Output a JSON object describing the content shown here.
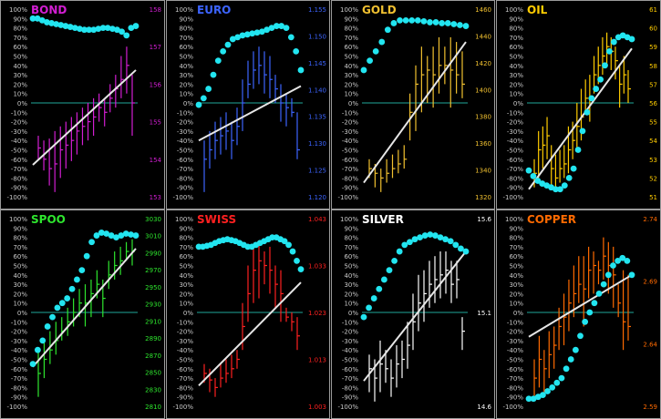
{
  "colors": {
    "background": "#000000",
    "zero_line": "#1fa99a",
    "dots": "#22e5f0",
    "trend": "#e6e6e6",
    "pct_axis": "#c8c8c8",
    "panel_border": "#9a9a9a"
  },
  "chart_data": [
    {
      "type": "bar",
      "title": "BOND",
      "color": "#d21ed2",
      "price_ticks": [
        "158",
        "157",
        "156",
        "155",
        "154",
        "153"
      ],
      "pct_ticks": [
        "100%",
        "90%",
        "80%",
        "70%",
        "60%",
        "50%",
        "40%",
        "30%",
        "20%",
        "10%",
        "0%",
        "-10%",
        "-20%",
        "-30%",
        "-40%",
        "-50%",
        "-60%",
        "-70%",
        "-80%",
        "-90%",
        "-100%"
      ],
      "oscillator": [
        90,
        90,
        88,
        86,
        85,
        84,
        83,
        82,
        81,
        80,
        79,
        78,
        78,
        78,
        79,
        80,
        80,
        79,
        78,
        76,
        72,
        80,
        82
      ],
      "trend": [
        -66,
        35
      ],
      "bars": [
        [
          -60,
          -35,
          -48
        ],
        [
          -72,
          -40,
          -60
        ],
        [
          -88,
          -38,
          -70
        ],
        [
          -95,
          -30,
          -65
        ],
        [
          -80,
          -25,
          -50
        ],
        [
          -70,
          -20,
          -45
        ],
        [
          -62,
          -15,
          -40
        ],
        [
          -55,
          -10,
          -30
        ],
        [
          -45,
          -5,
          -25
        ],
        [
          -40,
          0,
          -20
        ],
        [
          -35,
          5,
          -15
        ],
        [
          -20,
          10,
          -5
        ],
        [
          -25,
          5,
          -10
        ],
        [
          -10,
          20,
          5
        ],
        [
          -5,
          30,
          15
        ],
        [
          5,
          50,
          25
        ],
        [
          10,
          60,
          40
        ],
        [
          -35,
          30,
          0
        ]
      ]
    },
    {
      "type": "bar",
      "title": "EURO",
      "color": "#3c64ff",
      "price_ticks": [
        "1.155",
        "1.150",
        "1.145",
        "1.140",
        "1.135",
        "1.130",
        "1.125",
        "1.120"
      ],
      "pct_ticks": [
        "100%",
        "90%",
        "80%",
        "70%",
        "60%",
        "50%",
        "40%",
        "30%",
        "20%",
        "10%",
        "0%",
        "-10%",
        "-20%",
        "-30%",
        "-40%",
        "-50%",
        "-60%",
        "-70%",
        "-80%",
        "-90%",
        "-100%"
      ],
      "oscillator": [
        -2,
        5,
        15,
        30,
        45,
        55,
        62,
        68,
        70,
        72,
        73,
        74,
        75,
        76,
        78,
        80,
        82,
        82,
        80,
        70,
        55,
        35
      ],
      "trend": [
        -40,
        18
      ],
      "bars": [
        [
          -95,
          -40,
          -60
        ],
        [
          -70,
          -30,
          -50
        ],
        [
          -60,
          -20,
          -40
        ],
        [
          -55,
          -15,
          -35
        ],
        [
          -50,
          -10,
          -30
        ],
        [
          -60,
          -20,
          -40
        ],
        [
          -45,
          -5,
          -25
        ],
        [
          -30,
          25,
          0
        ],
        [
          5,
          45,
          20
        ],
        [
          15,
          55,
          35
        ],
        [
          20,
          60,
          40
        ],
        [
          10,
          55,
          30
        ],
        [
          5,
          50,
          25
        ],
        [
          0,
          30,
          15
        ],
        [
          -20,
          20,
          0
        ],
        [
          -25,
          10,
          -5
        ],
        [
          -15,
          5,
          -10
        ],
        [
          -60,
          -10,
          -50
        ]
      ]
    },
    {
      "type": "bar",
      "title": "GOLD",
      "color": "#f0c030",
      "price_ticks": [
        "1460",
        "1440",
        "1420",
        "1400",
        "1380",
        "1360",
        "1340",
        "1320"
      ],
      "pct_ticks": [
        "100%",
        "90%",
        "80%",
        "70%",
        "60%",
        "50%",
        "40%",
        "30%",
        "20%",
        "10%",
        "0%",
        "-10%",
        "-20%",
        "-30%",
        "-40%",
        "-50%",
        "-60%",
        "-70%",
        "-80%",
        "-90%",
        "-100%"
      ],
      "oscillator": [
        35,
        45,
        55,
        65,
        78,
        85,
        88,
        88,
        88,
        88,
        87,
        86,
        86,
        85,
        85,
        84,
        83,
        82
      ],
      "trend": [
        -85,
        65
      ],
      "bars": [
        [
          -80,
          -60,
          -70
        ],
        [
          -90,
          -65,
          -75
        ],
        [
          -95,
          -70,
          -80
        ],
        [
          -85,
          -60,
          -75
        ],
        [
          -80,
          -55,
          -70
        ],
        [
          -75,
          -50,
          -65
        ],
        [
          -70,
          -45,
          -60
        ],
        [
          -40,
          10,
          -10
        ],
        [
          -30,
          40,
          20
        ],
        [
          -10,
          60,
          30
        ],
        [
          0,
          50,
          35
        ],
        [
          -5,
          60,
          30
        ],
        [
          10,
          70,
          40
        ],
        [
          20,
          60,
          40
        ],
        [
          -5,
          70,
          35
        ],
        [
          10,
          65,
          30
        ],
        [
          5,
          55,
          20
        ]
      ]
    },
    {
      "type": "bar",
      "title": "OIL",
      "color": "#ffcc00",
      "price_ticks": [
        "61",
        "60",
        "59",
        "58",
        "57",
        "56",
        "55",
        "54",
        "53",
        "52",
        "51"
      ],
      "pct_ticks": [
        "100%",
        "90%",
        "80%",
        "70%",
        "60%",
        "50%",
        "40%",
        "30%",
        "20%",
        "10%",
        "0%",
        "-10%",
        "-20%",
        "-30%",
        "-40%",
        "-50%",
        "-60%",
        "-70%",
        "-80%",
        "-90%",
        "-100%"
      ],
      "oscillator": [
        -72,
        -78,
        -83,
        -86,
        -88,
        -90,
        -92,
        -92,
        -88,
        -80,
        -70,
        -50,
        -30,
        -10,
        5,
        15,
        25,
        40,
        55,
        65,
        70,
        72,
        70,
        68
      ],
      "trend": [
        -92,
        58
      ],
      "bars": [
        [
          -90,
          -60,
          -75
        ],
        [
          -80,
          -30,
          -50
        ],
        [
          -70,
          -25,
          -45
        ],
        [
          -60,
          -15,
          -35
        ],
        [
          -90,
          -45,
          -70
        ],
        [
          -95,
          -55,
          -80
        ],
        [
          -85,
          -50,
          -70
        ],
        [
          -80,
          -45,
          -65
        ],
        [
          -75,
          -25,
          -50
        ],
        [
          -60,
          -20,
          -40
        ],
        [
          -50,
          0,
          -25
        ],
        [
          -40,
          15,
          -15
        ],
        [
          -10,
          25,
          5
        ],
        [
          -20,
          30,
          5
        ],
        [
          10,
          50,
          30
        ],
        [
          20,
          60,
          40
        ],
        [
          30,
          70,
          50
        ],
        [
          40,
          75,
          60
        ],
        [
          35,
          70,
          55
        ],
        [
          25,
          60,
          45
        ],
        [
          -5,
          40,
          20
        ],
        [
          10,
          50,
          30
        ],
        [
          0,
          35,
          15
        ]
      ]
    },
    {
      "type": "bar",
      "title": "SPOO",
      "color": "#2ee62e",
      "price_ticks": [
        "3030",
        "3010",
        "2990",
        "2970",
        "2950",
        "2930",
        "2910",
        "2890",
        "2870",
        "2850",
        "2830",
        "2810"
      ],
      "pct_ticks": [
        "100%",
        "90%",
        "80%",
        "70%",
        "60%",
        "50%",
        "40%",
        "30%",
        "20%",
        "10%",
        "0%",
        "-10%",
        "-20%",
        "-30%",
        "-40%",
        "-50%",
        "-60%",
        "-70%",
        "-80%",
        "-90%",
        "-100%"
      ],
      "oscillator": [
        -55,
        -40,
        -30,
        -15,
        -5,
        5,
        10,
        15,
        25,
        35,
        45,
        60,
        75,
        82,
        85,
        84,
        82,
        80,
        82,
        84,
        83,
        82
      ],
      "trend": [
        -58,
        68
      ],
      "bars": [
        [
          -90,
          -40,
          -65
        ],
        [
          -70,
          -30,
          -50
        ],
        [
          -55,
          -20,
          -40
        ],
        [
          -45,
          -10,
          -30
        ],
        [
          -30,
          -5,
          -20
        ],
        [
          -25,
          5,
          -10
        ],
        [
          -15,
          15,
          0
        ],
        [
          -5,
          25,
          10
        ],
        [
          -15,
          30,
          10
        ],
        [
          -5,
          35,
          20
        ],
        [
          15,
          45,
          30
        ],
        [
          -5,
          35,
          15
        ],
        [
          25,
          55,
          40
        ],
        [
          35,
          65,
          50
        ],
        [
          40,
          70,
          55
        ],
        [
          55,
          75,
          65
        ],
        [
          50,
          78,
          65
        ]
      ]
    },
    {
      "type": "bar",
      "title": "SWISS",
      "color": "#ff2020",
      "price_ticks": [
        "1.043",
        "1.033",
        "1.023",
        "1.013",
        "1.003"
      ],
      "pct_ticks": [
        "100%",
        "90%",
        "80%",
        "70%",
        "60%",
        "50%",
        "40%",
        "30%",
        "20%",
        "10%",
        "0%",
        "-10%",
        "-20%",
        "-30%",
        "-40%",
        "-50%",
        "-60%",
        "-70%",
        "-80%",
        "-90%",
        "-100%"
      ],
      "oscillator": [
        70,
        70,
        71,
        72,
        74,
        76,
        77,
        78,
        77,
        76,
        74,
        72,
        70,
        70,
        72,
        74,
        76,
        78,
        80,
        80,
        78,
        76,
        72,
        65,
        55,
        46
      ],
      "trend": [
        -78,
        32
      ],
      "bars": [
        [
          -75,
          -55,
          -65
        ],
        [
          -85,
          -60,
          -72
        ],
        [
          -90,
          -70,
          -80
        ],
        [
          -80,
          -55,
          -70
        ],
        [
          -75,
          -50,
          -65
        ],
        [
          -70,
          -45,
          -60
        ],
        [
          -60,
          -40,
          -50
        ],
        [
          -40,
          10,
          -15
        ],
        [
          -10,
          50,
          20
        ],
        [
          10,
          70,
          45
        ],
        [
          15,
          75,
          55
        ],
        [
          30,
          65,
          50
        ],
        [
          20,
          70,
          45
        ],
        [
          5,
          50,
          30
        ],
        [
          -10,
          45,
          20
        ],
        [
          -10,
          5,
          -5
        ],
        [
          -20,
          0,
          -10
        ],
        [
          -40,
          -5,
          -25
        ]
      ]
    },
    {
      "type": "bar",
      "title": "SILVER",
      "color": "#ffffff",
      "price_ticks": [
        "15.6",
        "15.1",
        "14.6"
      ],
      "pct_ticks": [
        "100%",
        "90%",
        "80%",
        "70%",
        "60%",
        "50%",
        "40%",
        "30%",
        "20%",
        "10%",
        "0%",
        "-10%",
        "-20%",
        "-30%",
        "-40%",
        "-50%",
        "-60%",
        "-70%",
        "-80%",
        "-90%",
        "-100%"
      ],
      "oscillator": [
        -5,
        5,
        15,
        25,
        35,
        45,
        55,
        65,
        72,
        75,
        78,
        80,
        82,
        83,
        82,
        80,
        78,
        76,
        72,
        68,
        65
      ],
      "trend": [
        -73,
        65
      ],
      "bars": [
        [
          -85,
          -45,
          -60
        ],
        [
          -95,
          -50,
          -70
        ],
        [
          -85,
          -30,
          -55
        ],
        [
          -75,
          -40,
          -60
        ],
        [
          -90,
          -50,
          -70
        ],
        [
          -80,
          -35,
          -55
        ],
        [
          -70,
          -30,
          -50
        ],
        [
          -60,
          -10,
          -35
        ],
        [
          -40,
          20,
          -10
        ],
        [
          -20,
          40,
          10
        ],
        [
          -10,
          45,
          20
        ],
        [
          5,
          55,
          30
        ],
        [
          10,
          60,
          35
        ],
        [
          15,
          65,
          40
        ],
        [
          20,
          65,
          45
        ],
        [
          10,
          55,
          30
        ],
        [
          15,
          55,
          35
        ],
        [
          -40,
          -5,
          -20
        ]
      ]
    },
    {
      "type": "bar",
      "title": "COPPER",
      "color": "#ff6a00",
      "price_ticks": [
        "2.74",
        "2.69",
        "2.64",
        "2.59"
      ],
      "pct_ticks": [
        "100%",
        "90%",
        "80%",
        "70%",
        "60%",
        "50%",
        "40%",
        "30%",
        "20%",
        "10%",
        "0%",
        "-10%",
        "-20%",
        "-30%",
        "-40%",
        "-50%",
        "-60%",
        "-70%",
        "-80%",
        "-90%",
        "-100%"
      ],
      "oscillator": [
        -92,
        -92,
        -90,
        -88,
        -84,
        -80,
        -75,
        -70,
        -60,
        -50,
        -40,
        -25,
        -10,
        0,
        10,
        20,
        30,
        40,
        50,
        55,
        58,
        55,
        40
      ],
      "trend": [
        -26,
        40
      ],
      "bars": [
        [
          -90,
          -50,
          -70
        ],
        [
          -80,
          -25,
          -50
        ],
        [
          -85,
          -40,
          -60
        ],
        [
          -70,
          -20,
          -45
        ],
        [
          -60,
          -15,
          -35
        ],
        [
          -40,
          5,
          -15
        ],
        [
          -35,
          20,
          -5
        ],
        [
          -20,
          35,
          10
        ],
        [
          -5,
          50,
          20
        ],
        [
          10,
          60,
          30
        ],
        [
          -15,
          60,
          25
        ],
        [
          15,
          70,
          45
        ],
        [
          20,
          65,
          50
        ],
        [
          30,
          55,
          45
        ],
        [
          35,
          80,
          60
        ],
        [
          20,
          75,
          50
        ],
        [
          5,
          70,
          40
        ],
        [
          -5,
          30,
          10
        ],
        [
          -40,
          45,
          -10
        ],
        [
          -30,
          40,
          -15
        ]
      ]
    }
  ]
}
